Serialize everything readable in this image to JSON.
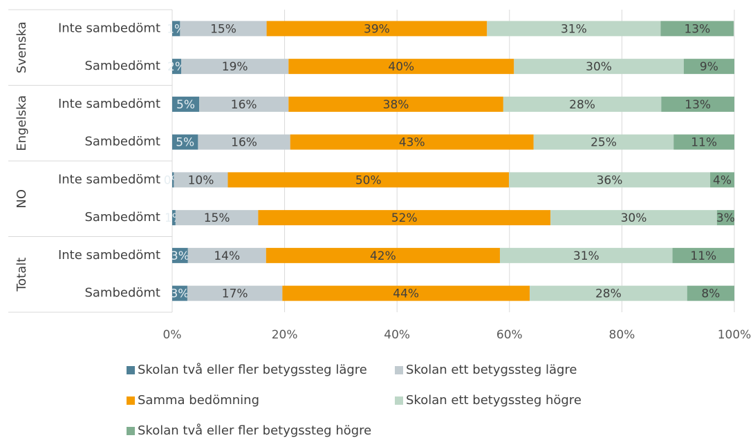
{
  "chart_data": {
    "type": "stacked_barh",
    "groups": [
      "Svenska",
      "Engelska",
      "NO",
      "Totalt"
    ],
    "categories": [
      "Inte sambedömt",
      "Sambedömt",
      "Inte sambedömt",
      "Sambedömt",
      "Inte sambedömt",
      "Sambedömt",
      "Inte sambedömt",
      "Sambedömt"
    ],
    "series": [
      {
        "name": "Skolan två eller fler betygssteg lägre",
        "color": "#4f8096",
        "label_color": "#e6eef2",
        "values": [
          1.4,
          1.6,
          4.8,
          4.6,
          0.3,
          0.6,
          2.8,
          2.7
        ],
        "value_labels": [
          "1%",
          "2%",
          "5%",
          "5%",
          "0%",
          "1%",
          "3%",
          "3%"
        ]
      },
      {
        "name": "Skolan ett betygssteg lägre",
        "color": "#c1cbd0",
        "label_color": "#404040",
        "values": [
          15.4,
          19.1,
          15.9,
          16.4,
          9.6,
          14.7,
          13.9,
          16.9
        ],
        "value_labels": [
          "15%",
          "19%",
          "16%",
          "16%",
          "10%",
          "15%",
          "14%",
          "17%"
        ]
      },
      {
        "name": "Samma bedömning",
        "color": "#f59c00",
        "label_color": "#404040",
        "values": [
          39.2,
          40.1,
          38.2,
          43.3,
          50.0,
          52.0,
          41.6,
          44.0
        ],
        "value_labels": [
          "39%",
          "40%",
          "38%",
          "43%",
          "50%",
          "52%",
          "42%",
          "44%"
        ]
      },
      {
        "name": "Skolan ett betygssteg högre",
        "color": "#bdd7c7",
        "label_color": "#404040",
        "values": [
          30.9,
          30.2,
          28.1,
          24.9,
          35.8,
          29.6,
          30.7,
          28.0
        ],
        "value_labels": [
          "31%",
          "30%",
          "28%",
          "25%",
          "36%",
          "30%",
          "31%",
          "28%"
        ]
      },
      {
        "name": "Skolan två eller fler betygssteg högre",
        "color": "#80ae90",
        "label_color": "#404040",
        "values": [
          13.0,
          9.0,
          13.0,
          10.8,
          4.3,
          3.1,
          11.0,
          8.4
        ],
        "value_labels": [
          "13%",
          "9%",
          "13%",
          "11%",
          "4%",
          "3%",
          "11%",
          "8%"
        ]
      }
    ],
    "xlim": [
      0,
      100
    ],
    "xticks": [
      {
        "value": 0,
        "label": "0%"
      },
      {
        "value": 20,
        "label": "20%"
      },
      {
        "value": 40,
        "label": "40%"
      },
      {
        "value": 60,
        "label": "60%"
      },
      {
        "value": 80,
        "label": "80%"
      },
      {
        "value": 100,
        "label": "100%"
      }
    ],
    "grid": true
  }
}
